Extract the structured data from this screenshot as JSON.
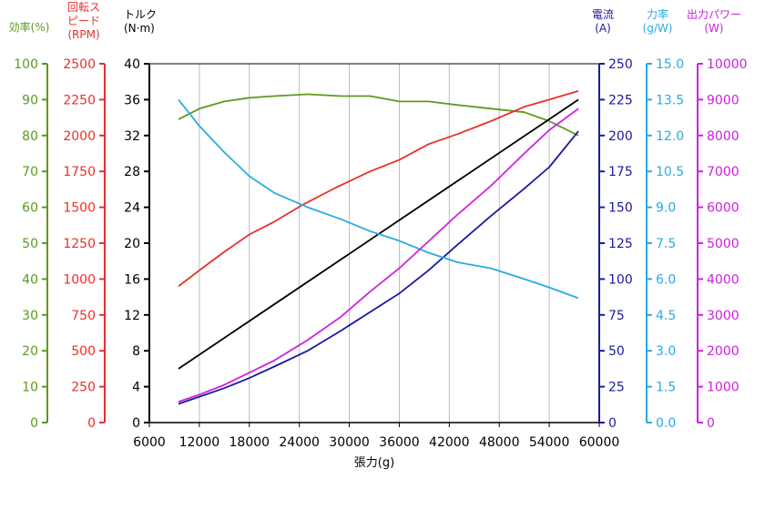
{
  "chart_data": {
    "type": "line",
    "xlabel": "張力(g)",
    "xlim": [
      6000,
      60000
    ],
    "x_ticks": [
      "6000",
      "12000",
      "18000",
      "24000",
      "30000",
      "36000",
      "42000",
      "48000",
      "54000",
      "60000"
    ],
    "grid": "vertical",
    "axes": [
      {
        "id": "eff",
        "side": "left",
        "label": [
          "効率(%)"
        ],
        "min": 0,
        "max": 100,
        "ticks": [
          "0",
          "10",
          "20",
          "30",
          "40",
          "50",
          "60",
          "70",
          "80",
          "90",
          "100"
        ],
        "color": "#5b9a1e"
      },
      {
        "id": "rpm",
        "side": "left",
        "label": [
          "回転ス",
          "ピード",
          "(RPM)"
        ],
        "min": 0,
        "max": 2500,
        "ticks": [
          "0",
          "250",
          "500",
          "750",
          "1000",
          "1250",
          "1500",
          "1750",
          "2000",
          "2250",
          "2500"
        ],
        "color": "#e8302c"
      },
      {
        "id": "torque",
        "side": "left",
        "label": [
          "トルク",
          "(N·m)"
        ],
        "min": 0,
        "max": 40,
        "ticks": [
          "0",
          "4",
          "8",
          "12",
          "16",
          "20",
          "24",
          "28",
          "32",
          "36",
          "40"
        ],
        "color": "#000000"
      },
      {
        "id": "current",
        "side": "right",
        "label": [
          "電流",
          "(A)"
        ],
        "min": 0,
        "max": 250,
        "ticks": [
          "0",
          "25",
          "50",
          "75",
          "100",
          "125",
          "150",
          "175",
          "200",
          "225",
          "250"
        ],
        "color": "#1a1aa0"
      },
      {
        "id": "force",
        "side": "right",
        "label": [
          "力率",
          "(g/W)"
        ],
        "min": 0,
        "max": 15,
        "ticks": [
          "0.0",
          "1.5",
          "3.0",
          "4.5",
          "6.0",
          "7.5",
          "9.0",
          "10.5",
          "12.0",
          "13.5",
          "15.0"
        ],
        "color": "#29abe2"
      },
      {
        "id": "power",
        "side": "right",
        "label": [
          "出力パワー",
          "(W)"
        ],
        "min": 0,
        "max": 10000,
        "ticks": [
          "0",
          "1000",
          "2000",
          "3000",
          "4000",
          "5000",
          "6000",
          "7000",
          "8000",
          "9000",
          "10000"
        ],
        "color": "#cc22dd"
      }
    ],
    "series": [
      {
        "axis": "eff",
        "color": "#5b9a1e",
        "x": [
          9500,
          12000,
          15000,
          18000,
          21000,
          25000,
          29000,
          32500,
          36000,
          39500,
          43000,
          47000,
          51000,
          54000,
          57500
        ],
        "y": [
          84.5,
          87.5,
          89.5,
          90.5,
          91,
          91.5,
          91,
          91,
          89.5,
          89.5,
          88.5,
          87.5,
          86.5,
          84,
          80
        ]
      },
      {
        "axis": "rpm",
        "color": "#e8302c",
        "x": [
          9500,
          12000,
          15000,
          18000,
          21000,
          24500,
          28500,
          32500,
          36000,
          39500,
          43000,
          47000,
          51000,
          54000,
          57500
        ],
        "y": [
          950,
          1060,
          1190,
          1310,
          1400,
          1520,
          1640,
          1750,
          1830,
          1940,
          2010,
          2100,
          2200,
          2250,
          2310
        ]
      },
      {
        "axis": "torque",
        "color": "#000000",
        "x": [
          9500,
          57500
        ],
        "y": [
          6,
          36
        ]
      },
      {
        "axis": "current",
        "color": "#1a1aa0",
        "x": [
          9500,
          12000,
          15000,
          18000,
          21000,
          25000,
          29000,
          32500,
          36000,
          39500,
          43000,
          47000,
          51000,
          54000,
          57500
        ],
        "y": [
          13,
          18,
          24,
          31,
          39,
          50,
          64,
          77,
          90,
          106,
          124,
          144,
          163,
          178,
          203
        ]
      },
      {
        "axis": "force",
        "color": "#29abe2",
        "x": [
          9500,
          12000,
          15000,
          18000,
          21000,
          25000,
          29000,
          32500,
          36000,
          39500,
          43000,
          47000,
          51000,
          54000,
          57500
        ],
        "y": [
          13.5,
          12.4,
          11.3,
          10.3,
          9.6,
          9.0,
          8.5,
          8.0,
          7.6,
          7.1,
          6.7,
          6.45,
          6.0,
          5.65,
          5.2
        ]
      },
      {
        "axis": "power",
        "color": "#cc22dd",
        "x": [
          9500,
          12000,
          15000,
          18000,
          21000,
          25000,
          29000,
          32500,
          36000,
          39500,
          43000,
          47000,
          51000,
          54000,
          57500
        ],
        "y": [
          580,
          780,
          1050,
          1390,
          1730,
          2300,
          2950,
          3650,
          4300,
          5050,
          5800,
          6600,
          7500,
          8150,
          8750
        ]
      }
    ]
  }
}
